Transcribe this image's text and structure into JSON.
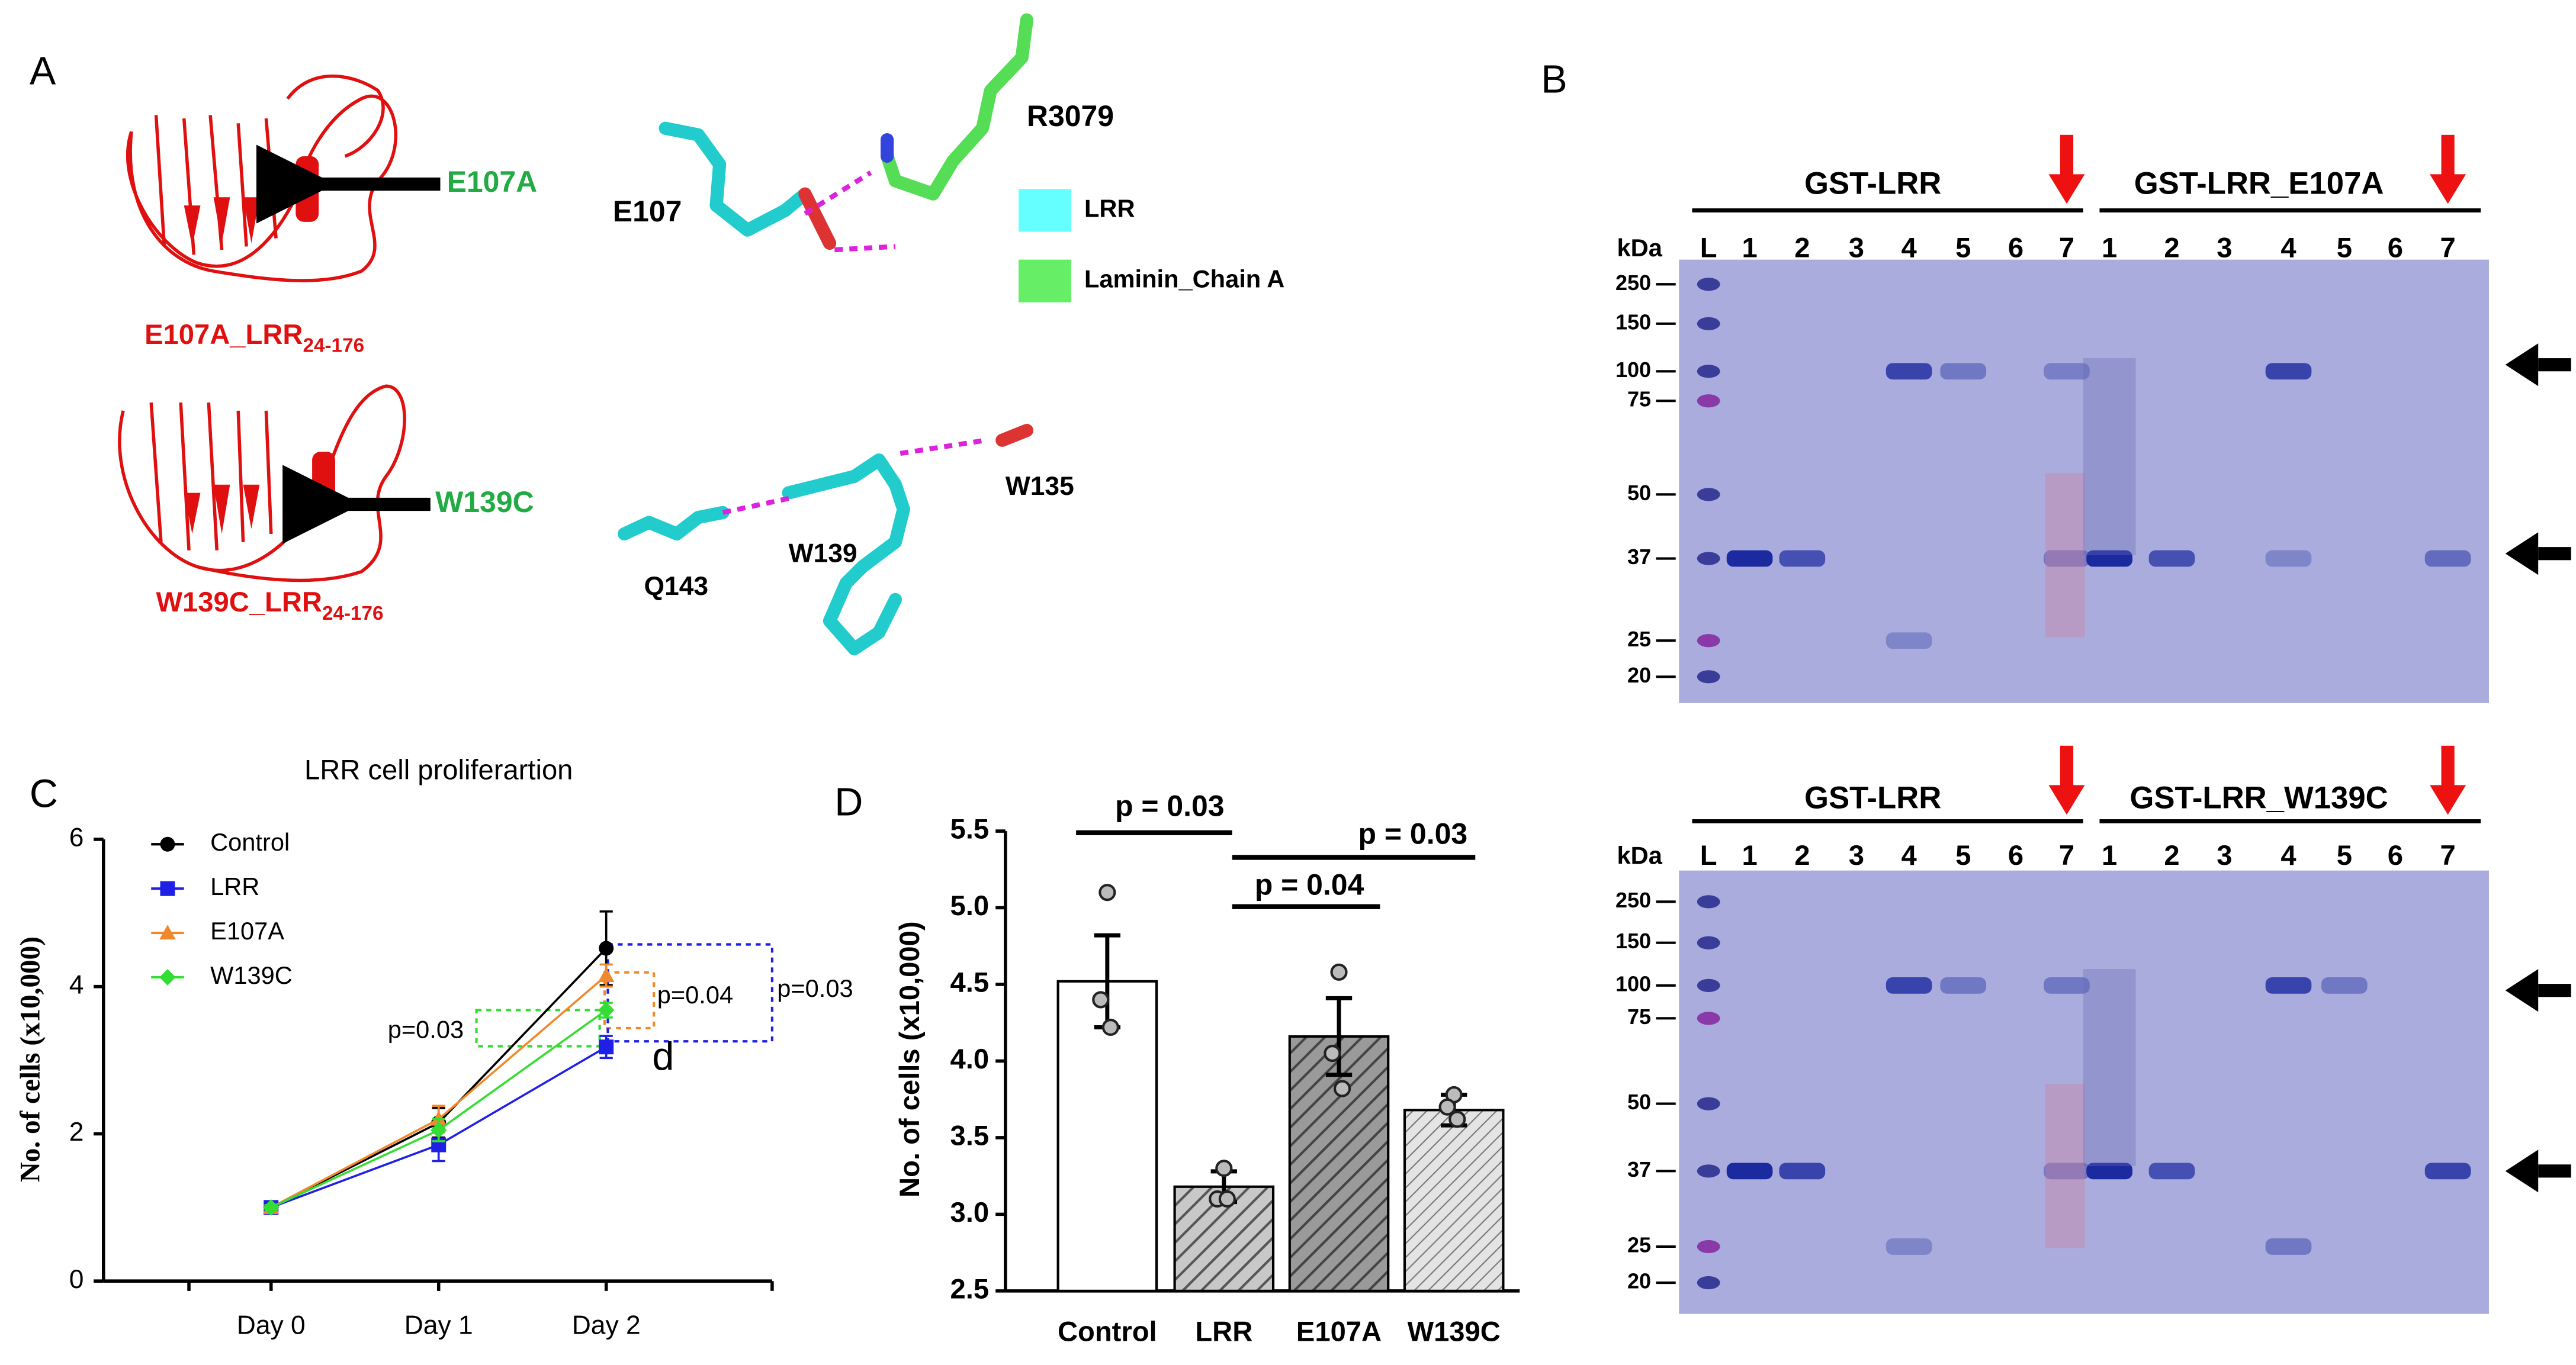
{
  "panel_a": {
    "label": "A",
    "mutant_1": {
      "arrow_label": "E107A",
      "name": "E107A_LRR",
      "subscript": "24-176"
    },
    "mutant_2": {
      "arrow_label": "W139C",
      "name": "W139C_LRR",
      "subscript": "24-176"
    },
    "interaction_1": {
      "residues": [
        "R3079",
        "E107"
      ]
    },
    "legend": [
      "LRR",
      "Laminin_Chain A"
    ],
    "interaction_2": {
      "residues": [
        "W135",
        "W139",
        "Q143"
      ]
    }
  },
  "panel_b": {
    "label": "B",
    "gels": [
      {
        "groups": [
          "GST-LRR",
          "GST-LRR_E107A"
        ],
        "unit": "kDa",
        "lanes": [
          "L",
          "1",
          "2",
          "3",
          "4",
          "5",
          "6",
          "7",
          "1",
          "2",
          "3",
          "4",
          "5",
          "6",
          "7"
        ],
        "markers": [
          250,
          150,
          100,
          75,
          50,
          37,
          25,
          20
        ]
      },
      {
        "groups": [
          "GST-LRR",
          "GST-LRR_W139C"
        ],
        "unit": "kDa",
        "lanes": [
          "L",
          "1",
          "2",
          "3",
          "4",
          "5",
          "6",
          "7",
          "1",
          "2",
          "3",
          "4",
          "5",
          "6",
          "7"
        ],
        "markers": [
          250,
          150,
          100,
          75,
          50,
          37,
          25,
          20
        ]
      }
    ]
  },
  "chart_data": [
    {
      "type": "line",
      "panel_label": "C",
      "title": "LRR cell proliferartion",
      "y_label": "No. of cells (x10,000)",
      "categories": [
        "Day 0",
        "Day 1",
        "Day 2"
      ],
      "ylim": [
        0,
        6
      ],
      "yticks": [
        0,
        2,
        4,
        6
      ],
      "series": [
        {
          "name": "Control",
          "color": "#000000",
          "marker": "circle",
          "values": [
            1,
            2.15,
            4.52
          ],
          "errors": [
            0.05,
            0.2,
            0.5
          ]
        },
        {
          "name": "LRR",
          "color": "#1f1fe6",
          "marker": "square",
          "values": [
            1,
            1.85,
            3.18
          ],
          "errors": [
            0.05,
            0.22,
            0.15
          ]
        },
        {
          "name": "E107A",
          "color": "#f0892b",
          "marker": "triangle",
          "values": [
            1,
            2.2,
            4.15
          ],
          "errors": [
            0.03,
            0.18,
            0.15
          ]
        },
        {
          "name": "W139C",
          "color": "#33dd33",
          "marker": "diamond",
          "values": [
            1,
            2.05,
            3.68
          ],
          "errors": [
            0.03,
            0.15,
            0.1
          ]
        }
      ],
      "annotations": [
        "p=0.03",
        "p=0.04",
        "p=0.03",
        "d"
      ]
    },
    {
      "type": "bar",
      "panel_label": "D",
      "y_label": "No. of cells (x10,000)",
      "categories": [
        "Control",
        "LRR",
        "E107A",
        "W139C"
      ],
      "values": [
        4.52,
        3.18,
        4.16,
        3.68
      ],
      "errors": [
        0.3,
        0.1,
        0.25,
        0.1
      ],
      "points": [
        [
          5.1,
          4.4,
          4.22
        ],
        [
          3.3,
          3.1,
          3.1
        ],
        [
          4.58,
          4.05,
          3.82
        ],
        [
          3.78,
          3.7,
          3.62
        ]
      ],
      "ylim": [
        2.5,
        5.5
      ],
      "yticks": [
        2.5,
        {
          "value": 3,
          "label": "3.0"
        },
        3.5,
        {
          "value": 4,
          "label": "4.0"
        },
        4.5,
        {
          "value": 5,
          "label": "5.0"
        },
        5.5
      ],
      "comparisons": [
        "p = 0.03",
        "p = 0.04",
        "p = 0.03"
      ]
    }
  ]
}
